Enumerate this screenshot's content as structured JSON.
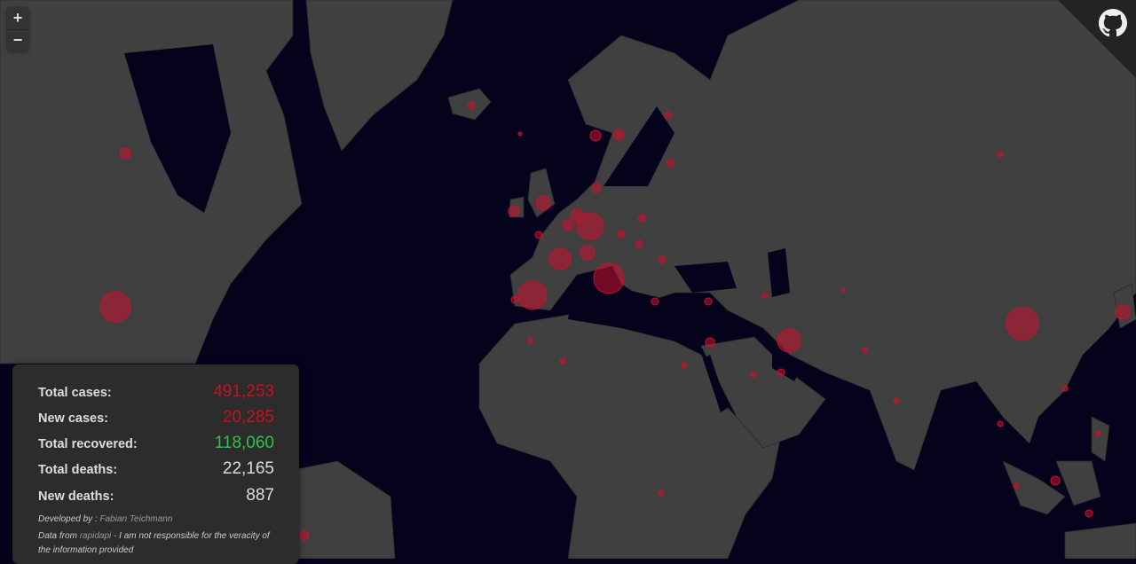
{
  "map": {
    "ocean_color": "#05031c",
    "land_color": "#404040",
    "bubble_color": "#c8102e"
  },
  "zoom": {
    "in_label": "+",
    "out_label": "−"
  },
  "github": {
    "icon": "github-icon"
  },
  "stats": [
    {
      "label": "Total cases:",
      "value": "491,253",
      "color": "#c8101e"
    },
    {
      "label": "New cases:",
      "value": "20,285",
      "color": "#c8101e"
    },
    {
      "label": "Total recovered:",
      "value": "118,060",
      "color": "#2ec24a"
    },
    {
      "label": "Total deaths:",
      "value": "22,165",
      "color": "#dddddd"
    },
    {
      "label": "New deaths:",
      "value": "887",
      "color": "#dddddd"
    }
  ],
  "credits": {
    "developed_prefix": "Developed by : ",
    "developer": "Fabian Teichmann",
    "data_prefix": "Data from ",
    "data_source": "rapidapi",
    "data_suffix": " - I am not responsible for the veracity of the information provided"
  }
}
